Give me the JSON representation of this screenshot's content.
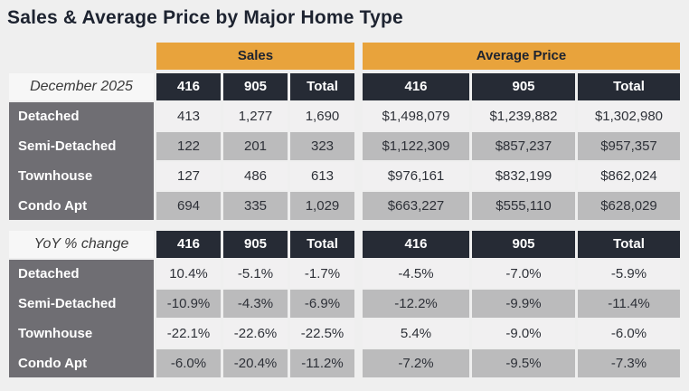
{
  "title": "Sales & Average Price by Major Home Type",
  "colors": {
    "accent_orange": "#E8A33C",
    "header_dark_navy": "#262B35",
    "row_label_gray": "#6F6E73",
    "row_light": "#F1F0F1",
    "row_gray": "#BBBBBC",
    "page_background": "#EFEFEF",
    "title_color": "#1D2330"
  },
  "chart_data": {
    "type": "table",
    "title": "Sales & Average Price by Major Home Type",
    "column_groups": [
      "Sales",
      "Average Price"
    ],
    "columns": [
      "416",
      "905",
      "Total"
    ],
    "sections": [
      {
        "label": "December 2025",
        "rows": [
          {
            "label": "Detached",
            "sales": [
              "413",
              "1,277",
              "1,690"
            ],
            "price": [
              "$1,498,079",
              "$1,239,882",
              "$1,302,980"
            ]
          },
          {
            "label": "Semi-Detached",
            "sales": [
              "122",
              "201",
              "323"
            ],
            "price": [
              "$1,122,309",
              "$857,237",
              "$957,357"
            ]
          },
          {
            "label": "Townhouse",
            "sales": [
              "127",
              "486",
              "613"
            ],
            "price": [
              "$976,161",
              "$832,199",
              "$862,024"
            ]
          },
          {
            "label": "Condo Apt",
            "sales": [
              "694",
              "335",
              "1,029"
            ],
            "price": [
              "$663,227",
              "$555,110",
              "$628,029"
            ]
          }
        ]
      },
      {
        "label": "YoY % change",
        "rows": [
          {
            "label": "Detached",
            "sales": [
              "10.4%",
              "-5.1%",
              "-1.7%"
            ],
            "price": [
              "-4.5%",
              "-7.0%",
              "-5.9%"
            ]
          },
          {
            "label": "Semi-Detached",
            "sales": [
              "-10.9%",
              "-4.3%",
              "-6.9%"
            ],
            "price": [
              "-12.2%",
              "-9.9%",
              "-11.4%"
            ]
          },
          {
            "label": "Townhouse",
            "sales": [
              "-22.1%",
              "-22.6%",
              "-22.5%"
            ],
            "price": [
              "5.4%",
              "-9.0%",
              "-6.0%"
            ]
          },
          {
            "label": "Condo Apt",
            "sales": [
              "-6.0%",
              "-20.4%",
              "-11.2%"
            ],
            "price": [
              "-7.2%",
              "-9.5%",
              "-7.3%"
            ]
          }
        ]
      }
    ]
  }
}
